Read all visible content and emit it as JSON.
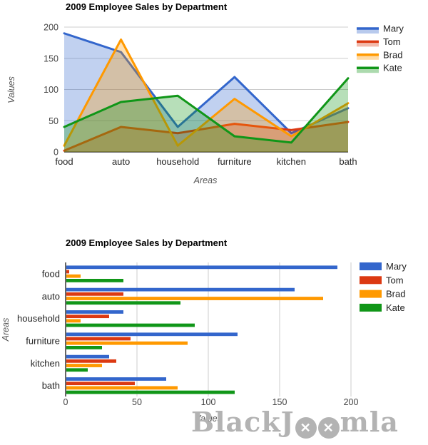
{
  "page": {
    "background": "#ffffff"
  },
  "watermark": {
    "prefix": "BlackJ",
    "suffix": "mla",
    "circle_glyph": "✕",
    "color": "#b3b3b3"
  },
  "palette": {
    "blue": "#3366cc",
    "red": "#dc3912",
    "orange": "#ff9900",
    "green": "#109618"
  },
  "chart_data": [
    {
      "type": "area",
      "title": "2009 Employee Sales by Department",
      "xlabel": "Areas",
      "ylabel": "Values",
      "categories": [
        "food",
        "auto",
        "household",
        "furniture",
        "kitchen",
        "bath"
      ],
      "series": [
        {
          "name": "Mary",
          "color": "#3366cc",
          "values": [
            190,
            160,
            40,
            120,
            30,
            70
          ]
        },
        {
          "name": "Tom",
          "color": "#dc3912",
          "values": [
            2,
            40,
            30,
            45,
            35,
            48
          ]
        },
        {
          "name": "Brad",
          "color": "#ff9900",
          "values": [
            10,
            180,
            10,
            85,
            25,
            78
          ]
        },
        {
          "name": "Kate",
          "color": "#109618",
          "values": [
            40,
            80,
            90,
            25,
            15,
            118
          ]
        }
      ],
      "y_ticks": [
        0,
        50,
        100,
        150,
        200
      ],
      "ylim": [
        0,
        200
      ],
      "area_opacity": 0.3,
      "grid": true,
      "legend_position": "right"
    },
    {
      "type": "bar",
      "orientation": "horizontal",
      "title": "2009 Employee Sales by Department",
      "xlabel": "Values",
      "ylabel": "Areas",
      "categories": [
        "food",
        "auto",
        "household",
        "furniture",
        "kitchen",
        "bath"
      ],
      "series": [
        {
          "name": "Mary",
          "color": "#3366cc",
          "values": [
            190,
            160,
            40,
            120,
            30,
            70
          ]
        },
        {
          "name": "Tom",
          "color": "#dc3912",
          "values": [
            2,
            40,
            30,
            45,
            35,
            48
          ]
        },
        {
          "name": "Brad",
          "color": "#ff9900",
          "values": [
            10,
            180,
            10,
            85,
            25,
            78
          ]
        },
        {
          "name": "Kate",
          "color": "#109618",
          "values": [
            40,
            80,
            90,
            25,
            15,
            118
          ]
        }
      ],
      "x_ticks": [
        0,
        50,
        100,
        150,
        200
      ],
      "xlim": [
        0,
        200
      ],
      "grid": true,
      "legend_position": "right"
    }
  ]
}
